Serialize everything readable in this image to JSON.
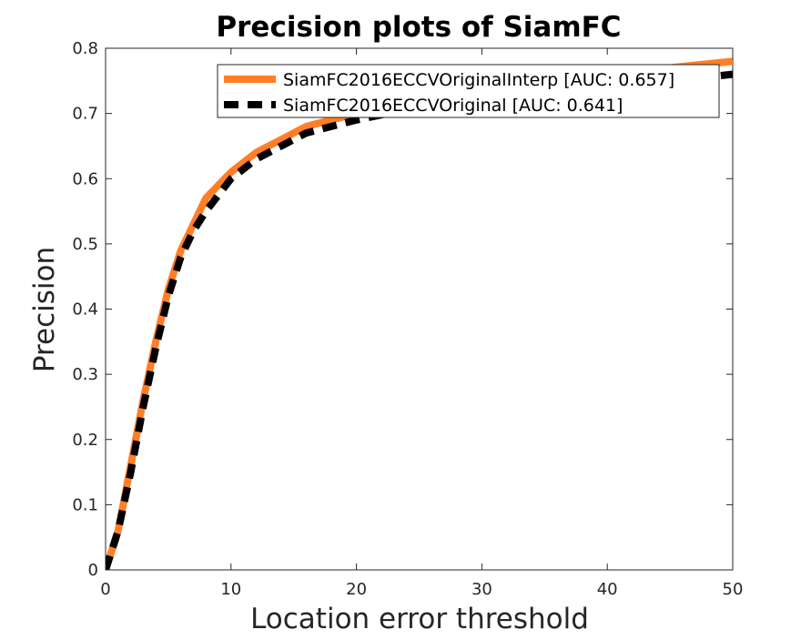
{
  "chart_data": {
    "type": "line",
    "title": "Precision plots of SiamFC",
    "xlabel": "Location error threshold",
    "ylabel": "Precision",
    "xlim": [
      0,
      50
    ],
    "ylim": [
      0,
      0.8
    ],
    "xticks": [
      0,
      10,
      20,
      30,
      40,
      50
    ],
    "xtick_labels": [
      "0",
      "10",
      "20",
      "30",
      "40",
      "50"
    ],
    "yticks": [
      0,
      0.1,
      0.2,
      0.3,
      0.4,
      0.5,
      0.6,
      0.7,
      0.8
    ],
    "ytick_labels": [
      "0",
      "0.1",
      "0.2",
      "0.3",
      "0.4",
      "0.5",
      "0.6",
      "0.7",
      "0.8"
    ],
    "grid": false,
    "legend_position": "top-right",
    "series": [
      {
        "name": "SiamFC2016ECCVOriginalInterp [AUC: 0.657]",
        "color": "#ff7f27",
        "style": "solid",
        "x": [
          0,
          1,
          2,
          3,
          4,
          5,
          6,
          7,
          8,
          10,
          12,
          14,
          16,
          18,
          20,
          25,
          30,
          35,
          40,
          45,
          50
        ],
        "y": [
          0.0,
          0.06,
          0.16,
          0.26,
          0.35,
          0.43,
          0.49,
          0.53,
          0.57,
          0.61,
          0.64,
          0.66,
          0.68,
          0.69,
          0.7,
          0.72,
          0.74,
          0.75,
          0.76,
          0.77,
          0.78
        ]
      },
      {
        "name": "SiamFC2016ECCVOriginal [AUC: 0.641]",
        "color": "#000000",
        "style": "dashed",
        "x": [
          0,
          1,
          2,
          3,
          4,
          5,
          6,
          7,
          8,
          10,
          12,
          14,
          16,
          18,
          20,
          25,
          30,
          35,
          40,
          45,
          50
        ],
        "y": [
          0.0,
          0.06,
          0.15,
          0.25,
          0.34,
          0.42,
          0.48,
          0.52,
          0.55,
          0.6,
          0.63,
          0.65,
          0.67,
          0.68,
          0.69,
          0.71,
          0.72,
          0.73,
          0.74,
          0.75,
          0.76
        ]
      }
    ]
  }
}
